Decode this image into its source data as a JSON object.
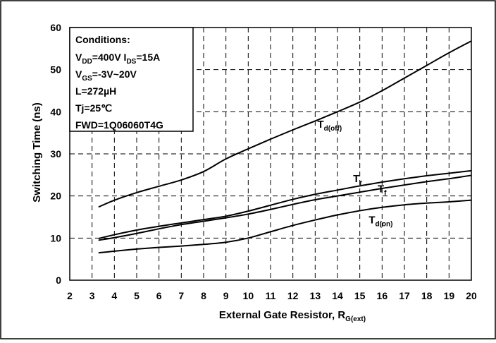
{
  "chart_data": {
    "type": "line",
    "xlabel": "External Gate Resistor, R",
    "xlabel_sub": "G(ext)",
    "ylabel": "Switching Time (ns)",
    "xlim": [
      2,
      20
    ],
    "ylim": [
      0,
      60
    ],
    "x_ticks": [
      2,
      3,
      4,
      5,
      6,
      7,
      8,
      9,
      10,
      11,
      12,
      13,
      14,
      15,
      16,
      17,
      18,
      19,
      20
    ],
    "y_ticks": [
      0,
      10,
      20,
      30,
      40,
      50,
      60
    ],
    "grid": true,
    "series": [
      {
        "name": "T",
        "name_sub": "d(off)",
        "x": [
          3.3,
          4,
          5,
          6,
          7,
          8,
          9,
          10,
          11,
          12,
          13,
          14,
          15,
          16,
          17,
          18,
          19,
          20
        ],
        "values": [
          17.4,
          19,
          20.8,
          22.3,
          23.8,
          25.8,
          28.8,
          31.2,
          33.5,
          35.7,
          37.8,
          40,
          42.3,
          45,
          48,
          51,
          54,
          56.8
        ]
      },
      {
        "name": "T",
        "name_sub": "r",
        "x": [
          3.3,
          4,
          5,
          6,
          7,
          8,
          9,
          10,
          11,
          12,
          13,
          14,
          15,
          16,
          17,
          18,
          19,
          20
        ],
        "values": [
          9.9,
          10.8,
          11.9,
          12.8,
          13.6,
          14.4,
          15.2,
          16.4,
          17.8,
          19.2,
          20.4,
          21.4,
          22.4,
          23.3,
          24.1,
          24.8,
          25.4,
          26
        ]
      },
      {
        "name": "T",
        "name_sub": "f",
        "x": [
          3.3,
          4,
          5,
          6,
          7,
          8,
          9,
          10,
          11,
          12,
          13,
          14,
          15,
          16,
          17,
          18,
          19,
          20
        ],
        "values": [
          9.5,
          10.1,
          11.1,
          12.2,
          13.2,
          14,
          14.8,
          15.7,
          16.8,
          18,
          19.1,
          20,
          20.9,
          21.8,
          22.6,
          23.4,
          24.1,
          24.9
        ]
      },
      {
        "name": "T",
        "name_sub": "d(on)",
        "x": [
          3.3,
          4,
          5,
          6,
          7,
          8,
          9,
          10,
          11,
          12,
          13,
          14,
          15,
          16,
          17,
          18,
          19,
          20
        ],
        "values": [
          6.5,
          6.9,
          7.4,
          7.8,
          8.1,
          8.5,
          9,
          10,
          11.5,
          13,
          14.3,
          15.5,
          16.5,
          17.3,
          17.9,
          18.3,
          18.6,
          19
        ]
      }
    ],
    "annotations": {
      "conditions_title": "Conditions:",
      "conditions": [
        [
          {
            "t": "V"
          },
          {
            "t": "DD",
            "sub": true
          },
          {
            "t": "=400V I"
          },
          {
            "t": "DS",
            "sub": true
          },
          {
            "t": "=15A"
          }
        ],
        [
          {
            "t": "V"
          },
          {
            "t": "GS",
            "sub": true
          },
          {
            "t": "=-3V~20V"
          }
        ],
        [
          {
            "t": "L=272µH"
          }
        ],
        [
          {
            "t": "Tj=25℃"
          }
        ],
        [
          {
            "t": "FWD=1Q06060T4G"
          }
        ]
      ]
    }
  }
}
